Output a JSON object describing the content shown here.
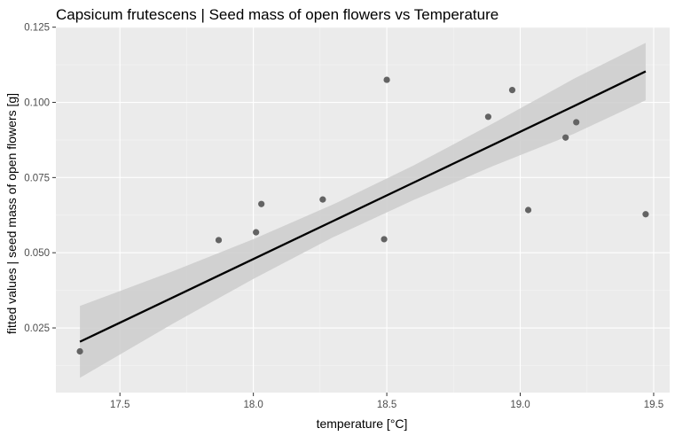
{
  "chart_data": {
    "type": "scatter",
    "title": "Capsicum frutescens | Seed mass of open flowers vs Temperature",
    "xlabel": "temperature [°C]",
    "ylabel": "fitted values | seed mass of open flowers [g]",
    "xlim": [
      17.26,
      19.56
    ],
    "ylim": [
      0.0035,
      0.1252
    ],
    "x_ticks": [
      17.5,
      18.0,
      18.5,
      19.0,
      19.5
    ],
    "x_tick_labels": [
      "17.5",
      "18.0",
      "18.5",
      "19.0",
      "19.5"
    ],
    "y_ticks": [
      0.025,
      0.05,
      0.075,
      0.1,
      0.125
    ],
    "y_tick_labels": [
      "0.025",
      "0.050",
      "0.075",
      "0.100",
      "0.125"
    ],
    "grid": true,
    "points": [
      {
        "x": 17.35,
        "y": 0.0172
      },
      {
        "x": 17.87,
        "y": 0.0542
      },
      {
        "x": 18.01,
        "y": 0.0568
      },
      {
        "x": 18.03,
        "y": 0.0662
      },
      {
        "x": 18.26,
        "y": 0.0677
      },
      {
        "x": 18.49,
        "y": 0.0545
      },
      {
        "x": 18.5,
        "y": 0.1075
      },
      {
        "x": 18.88,
        "y": 0.0952
      },
      {
        "x": 18.97,
        "y": 0.1041
      },
      {
        "x": 19.03,
        "y": 0.0642
      },
      {
        "x": 19.17,
        "y": 0.0883
      },
      {
        "x": 19.21,
        "y": 0.0934
      },
      {
        "x": 19.47,
        "y": 0.0628
      }
    ],
    "fit": {
      "x": [
        17.35,
        17.7,
        18.0,
        18.3,
        18.6,
        18.9,
        19.2,
        19.47
      ],
      "y": [
        0.0204,
        0.0352,
        0.0479,
        0.0606,
        0.0733,
        0.086,
        0.0987,
        0.1103
      ],
      "lower": [
        0.0084,
        0.0265,
        0.0413,
        0.0552,
        0.0675,
        0.0789,
        0.0895,
        0.1007
      ],
      "upper": [
        0.0323,
        0.0439,
        0.0545,
        0.0661,
        0.079,
        0.0931,
        0.1078,
        0.1198
      ]
    },
    "colors": {
      "panel": "#ebebeb",
      "grid_major": "#ffffff",
      "points": "#636363",
      "line": "#000000",
      "ribbon": "#cccccc"
    }
  }
}
